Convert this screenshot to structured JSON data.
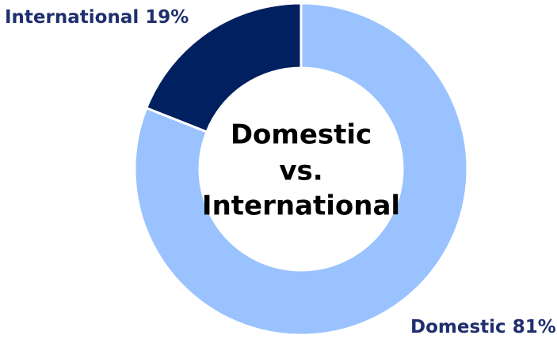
{
  "chart_data": {
    "type": "donut",
    "center_text": [
      "Domestic",
      "vs.",
      "International"
    ],
    "categories": [
      "Domestic",
      "International"
    ],
    "values": [
      81,
      19
    ],
    "value_labels": [
      "81%",
      "19%"
    ],
    "colors": [
      "#99c2ff",
      "#002060"
    ],
    "label_color": "#1f2f6e"
  }
}
